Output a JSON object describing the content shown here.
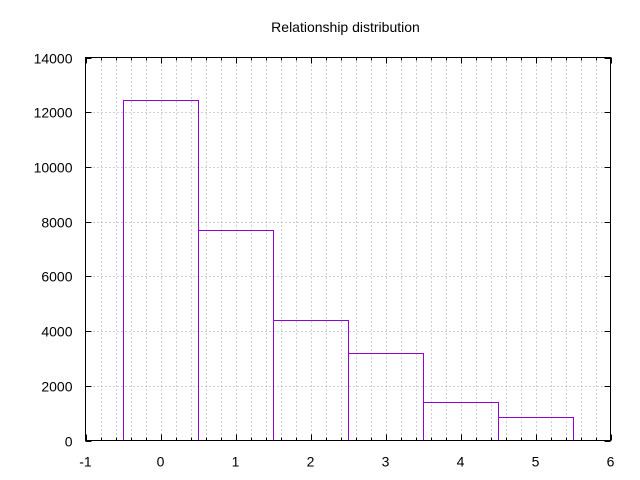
{
  "chart_data": {
    "type": "bar",
    "title": "Relationship distribution",
    "xlabel": "",
    "ylabel": "",
    "x": [
      0,
      1,
      2,
      3,
      4,
      5
    ],
    "values": [
      12450,
      7700,
      4420,
      3200,
      1420,
      860
    ],
    "bar_width": 1,
    "xlim": [
      -1,
      6
    ],
    "ylim": [
      0,
      14000
    ],
    "x_ticks": [
      -1,
      0,
      1,
      2,
      3,
      4,
      5,
      6
    ],
    "y_ticks": [
      0,
      2000,
      4000,
      6000,
      8000,
      10000,
      12000,
      14000
    ],
    "x_minor_step": 0.2,
    "grid": true,
    "bar_color": "#9400d3"
  }
}
